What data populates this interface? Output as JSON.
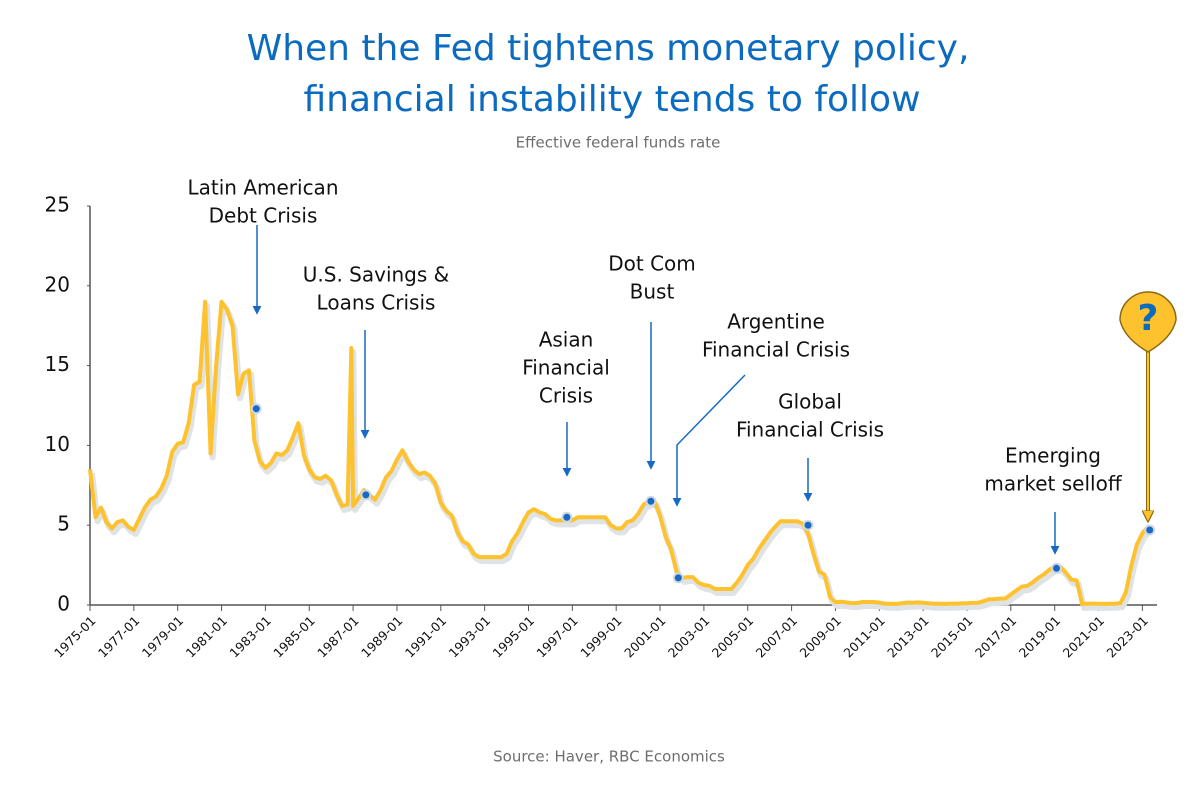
{
  "chart_data": {
    "type": "line",
    "title": [
      "When the Fed tightens monetary policy,",
      "financial instability tends to follow"
    ],
    "subtitle": "Effective federal funds rate",
    "source": "Source: Haver, RBC Economics",
    "color": "#fec22e",
    "x": [
      "1975-01",
      "1975-04",
      "1975-07",
      "1975-10",
      "1976-01",
      "1976-04",
      "1976-07",
      "1976-10",
      "1977-01",
      "1977-04",
      "1977-07",
      "1977-10",
      "1978-01",
      "1978-04",
      "1978-07",
      "1978-10",
      "1979-01",
      "1979-04",
      "1979-07",
      "1979-10",
      "1980-01",
      "1980-04",
      "1980-07",
      "1980-10",
      "1981-01",
      "1981-04",
      "1981-07",
      "1981-10",
      "1982-01",
      "1982-04",
      "1982-07",
      "1982-10",
      "1983-01",
      "1983-04",
      "1983-07",
      "1983-10",
      "1984-01",
      "1984-04",
      "1984-07",
      "1984-10",
      "1985-01",
      "1985-04",
      "1985-07",
      "1985-10",
      "1986-01",
      "1986-04",
      "1986-07",
      "1986-10",
      "1986-12",
      "1987-01",
      "1987-04",
      "1987-07",
      "1987-10",
      "1988-01",
      "1988-04",
      "1988-07",
      "1988-10",
      "1989-01",
      "1989-04",
      "1989-07",
      "1989-10",
      "1990-01",
      "1990-04",
      "1990-07",
      "1990-10",
      "1991-01",
      "1991-04",
      "1991-07",
      "1991-10",
      "1992-01",
      "1992-04",
      "1992-07",
      "1992-10",
      "1993-01",
      "1993-04",
      "1993-07",
      "1993-10",
      "1994-01",
      "1994-04",
      "1994-07",
      "1994-10",
      "1995-01",
      "1995-04",
      "1995-07",
      "1995-10",
      "1996-01",
      "1996-04",
      "1996-07",
      "1996-10",
      "1997-01",
      "1997-04",
      "1997-07",
      "1997-10",
      "1998-01",
      "1998-04",
      "1998-07",
      "1998-10",
      "1999-01",
      "1999-04",
      "1999-07",
      "1999-10",
      "2000-01",
      "2000-04",
      "2000-07",
      "2000-10",
      "2001-01",
      "2001-04",
      "2001-07",
      "2001-10",
      "2002-01",
      "2002-04",
      "2002-07",
      "2002-10",
      "2003-01",
      "2003-04",
      "2003-07",
      "2003-10",
      "2004-01",
      "2004-04",
      "2004-07",
      "2004-10",
      "2005-01",
      "2005-04",
      "2005-07",
      "2005-10",
      "2006-01",
      "2006-04",
      "2006-07",
      "2006-10",
      "2007-01",
      "2007-04",
      "2007-07",
      "2007-10",
      "2008-01",
      "2008-04",
      "2008-07",
      "2008-10",
      "2009-01",
      "2009-04",
      "2009-07",
      "2009-10",
      "2010-01",
      "2010-04",
      "2010-07",
      "2010-10",
      "2011-01",
      "2011-04",
      "2011-07",
      "2011-10",
      "2012-01",
      "2012-04",
      "2012-07",
      "2012-10",
      "2013-01",
      "2013-04",
      "2013-07",
      "2013-10",
      "2014-01",
      "2014-04",
      "2014-07",
      "2014-10",
      "2015-01",
      "2015-04",
      "2015-07",
      "2015-10",
      "2016-01",
      "2016-04",
      "2016-07",
      "2016-10",
      "2017-01",
      "2017-04",
      "2017-07",
      "2017-10",
      "2018-01",
      "2018-04",
      "2018-07",
      "2018-10",
      "2019-01",
      "2019-04",
      "2019-07",
      "2019-10",
      "2020-01",
      "2020-04",
      "2020-07",
      "2020-10",
      "2021-01",
      "2021-04",
      "2021-07",
      "2021-10",
      "2022-01",
      "2022-04",
      "2022-07",
      "2022-10",
      "2023-01",
      "2023-04"
    ],
    "values": [
      8.5,
      5.5,
      6.1,
      5.2,
      4.8,
      5.2,
      5.3,
      4.9,
      4.7,
      5.4,
      6.1,
      6.6,
      6.8,
      7.3,
      8.1,
      9.6,
      10.1,
      10.2,
      11.4,
      13.8,
      14.0,
      19.0,
      9.5,
      15.0,
      19.0,
      18.5,
      17.5,
      13.2,
      14.5,
      14.7,
      10.3,
      9.0,
      8.6,
      8.9,
      9.5,
      9.4,
      9.7,
      10.5,
      11.4,
      9.4,
      8.5,
      8.0,
      7.9,
      8.1,
      7.8,
      6.9,
      6.2,
      6.3,
      16.1,
      6.2,
      6.7,
      7.2,
      6.9,
      6.6,
      7.2,
      8.0,
      8.4,
      9.1,
      9.7,
      9.0,
      8.5,
      8.2,
      8.3,
      8.1,
      7.6,
      6.4,
      5.9,
      5.6,
      4.6,
      4.0,
      3.8,
      3.2,
      3.0,
      3.0,
      3.0,
      3.0,
      3.0,
      3.2,
      4.0,
      4.5,
      5.2,
      5.8,
      6.0,
      5.8,
      5.7,
      5.4,
      5.3,
      5.3,
      5.3,
      5.3,
      5.5,
      5.5,
      5.5,
      5.5,
      5.5,
      5.5,
      5.0,
      4.8,
      4.8,
      5.2,
      5.3,
      5.7,
      6.3,
      6.5,
      6.5,
      5.6,
      4.3,
      3.5,
      2.1,
      1.7,
      1.75,
      1.75,
      1.4,
      1.25,
      1.2,
      1.0,
      1.0,
      1.0,
      1.0,
      1.4,
      1.9,
      2.5,
      2.9,
      3.5,
      4.0,
      4.5,
      4.9,
      5.25,
      5.25,
      5.25,
      5.25,
      5.1,
      4.5,
      3.2,
      2.1,
      1.9,
      0.5,
      0.18,
      0.2,
      0.16,
      0.12,
      0.13,
      0.19,
      0.19,
      0.19,
      0.15,
      0.09,
      0.08,
      0.07,
      0.1,
      0.15,
      0.14,
      0.16,
      0.14,
      0.11,
      0.08,
      0.09,
      0.07,
      0.09,
      0.09,
      0.1,
      0.11,
      0.13,
      0.14,
      0.24,
      0.36,
      0.37,
      0.4,
      0.41,
      0.66,
      0.91,
      1.15,
      1.2,
      1.42,
      1.7,
      1.92,
      2.2,
      2.4,
      2.4,
      2.05,
      1.6,
      1.55,
      0.06,
      0.09,
      0.09,
      0.08,
      0.07,
      0.08,
      0.08,
      0.12,
      0.8,
      2.5,
      3.8,
      4.5,
      4.9
    ],
    "xlim": [
      "1975-01",
      "2023-09"
    ],
    "xticks": [
      "1975-01",
      "1977-01",
      "1979-01",
      "1981-01",
      "1983-01",
      "1985-01",
      "1987-01",
      "1989-01",
      "1991-01",
      "1993-01",
      "1995-01",
      "1997-01",
      "1999-01",
      "2001-01",
      "2003-01",
      "2005-01",
      "2007-01",
      "2009-01",
      "2011-01",
      "2013-01",
      "2015-01",
      "2017-01",
      "2019-01",
      "2021-01",
      "2023-01"
    ],
    "ylim": [
      0,
      25
    ],
    "yticks": [
      0,
      5,
      10,
      15,
      20,
      25
    ],
    "annotations": [
      {
        "label": [
          "Latin American",
          "Debt Crisis"
        ],
        "x": "1982-08",
        "y": 12.3
      },
      {
        "label": [
          "U.S. Savings &",
          "Loans Crisis"
        ],
        "x": "1987-08",
        "y": 6.9
      },
      {
        "label": [
          "Asian",
          "Financial",
          "Crisis"
        ],
        "x": "1996-10",
        "y": 5.5
      },
      {
        "label": [
          "Dot Com",
          "Bust"
        ],
        "x": "2000-08",
        "y": 6.5
      },
      {
        "label": [
          "Argentine",
          "Financial Crisis"
        ],
        "x": "2001-11",
        "y": 1.7
      },
      {
        "label": [
          "Global",
          "Financial Crisis"
        ],
        "x": "2007-10",
        "y": 5.0
      },
      {
        "label": [
          "Emerging",
          "market selloff"
        ],
        "x": "2019-02",
        "y": 2.3
      },
      {
        "label": [
          "?"
        ],
        "x": "2023-05",
        "y": 4.7
      }
    ]
  }
}
